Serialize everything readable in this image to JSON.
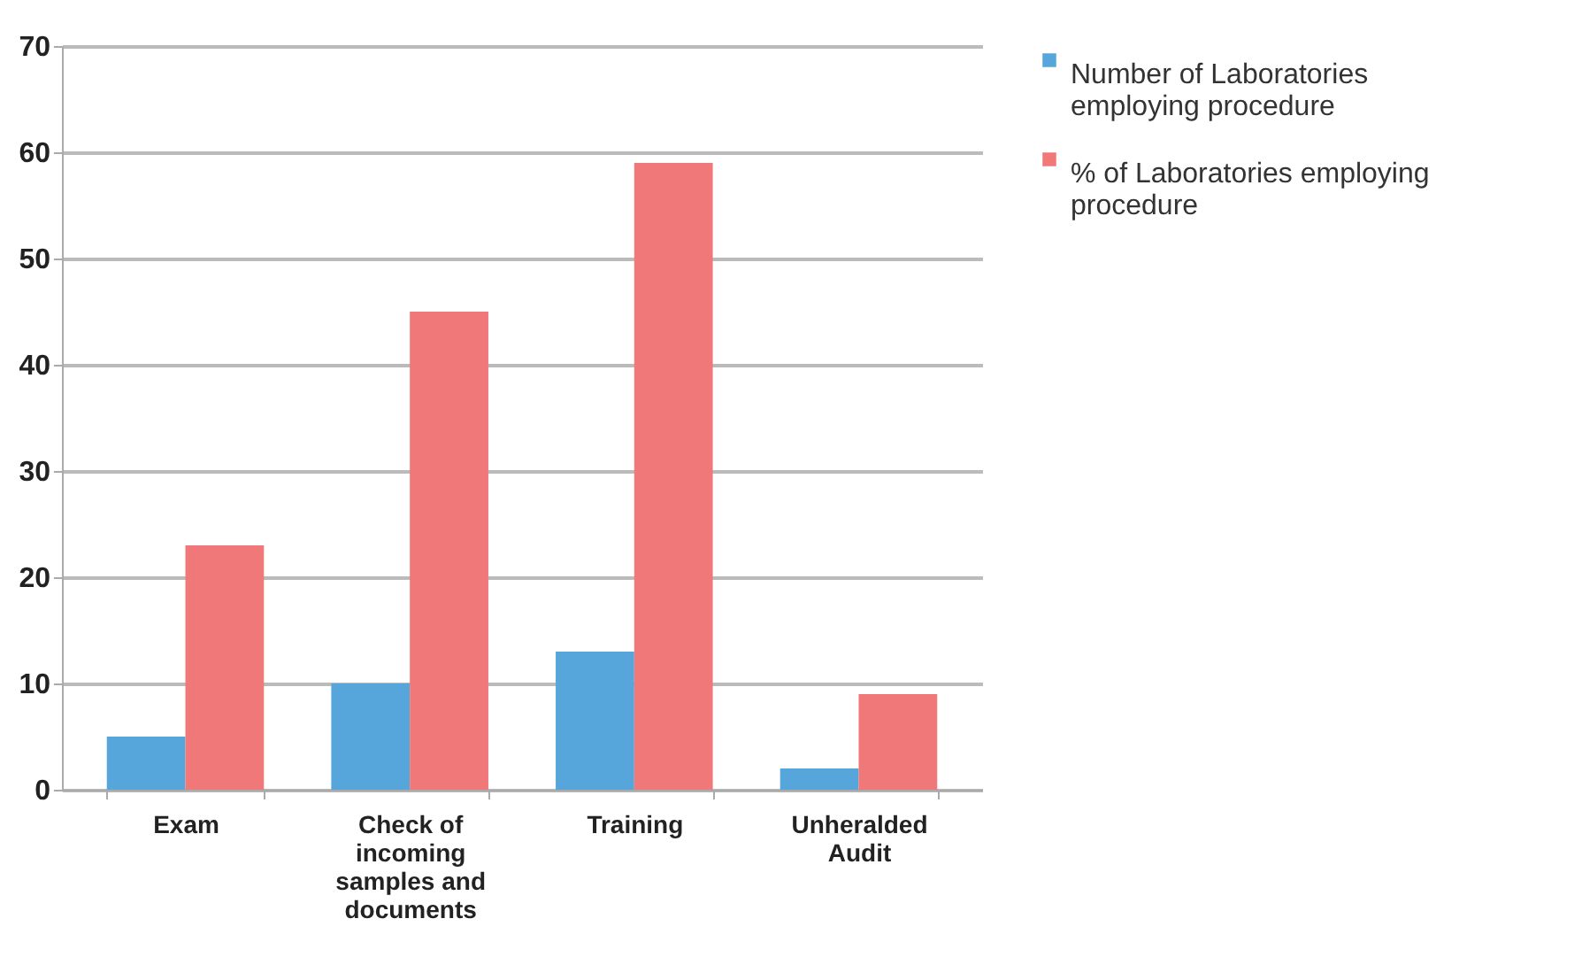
{
  "chart_data": {
    "type": "bar",
    "categories": [
      "Exam",
      "Check of incoming samples and documents",
      "Training",
      "Unheralded Audit"
    ],
    "series": [
      {
        "name": "Number of Laboratories employing procedure",
        "color": "#56a6dc",
        "values": [
          5,
          10,
          13,
          2
        ]
      },
      {
        "name": "% of Laboratories employing procedure",
        "color": "#f07878",
        "values": [
          23,
          45,
          59,
          9
        ]
      }
    ],
    "ylim": [
      0,
      70
    ],
    "yticks": [
      0,
      10,
      20,
      30,
      40,
      50,
      60,
      70
    ],
    "grid": "y",
    "legend": "right"
  }
}
